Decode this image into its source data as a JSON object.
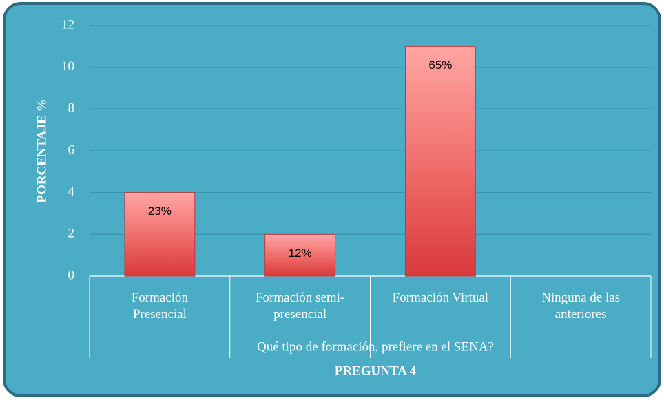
{
  "chart_data": {
    "type": "bar",
    "title": "PREGUNTA 4",
    "x_label": "Qué tipo de formación, prefiere en el SENA?",
    "y_label": "PORCENTAJE %",
    "categories": [
      "Formación\nPresencial",
      "Formación semi-\npresencial",
      "Formación Virtual",
      "Ninguna de las\nanteriores"
    ],
    "values": [
      4,
      2,
      11,
      0
    ],
    "data_labels": [
      "23%",
      "12%",
      "65%",
      null
    ],
    "color": "#e04846",
    "ylim": [
      0,
      12
    ],
    "yticks": [
      0,
      2,
      4,
      6,
      8,
      10,
      12
    ],
    "grid": true
  }
}
